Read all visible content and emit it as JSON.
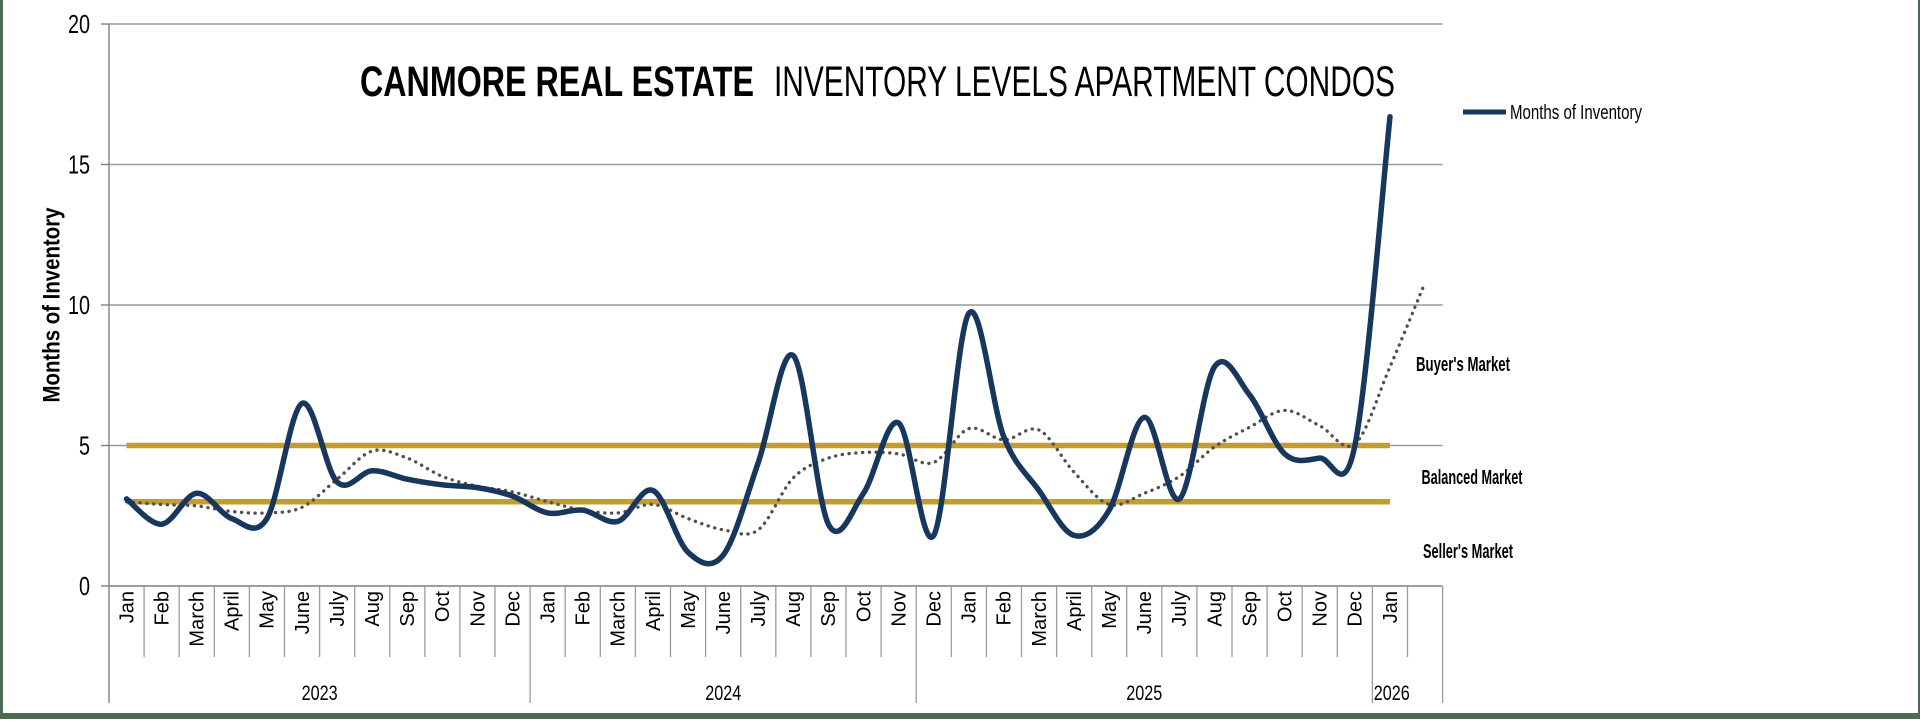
{
  "title": {
    "part1": "CANMORE REAL ESTATE",
    "part2": "INVENTORY LEVELS APARTMENT CONDOS"
  },
  "legend": {
    "label": "Months of Inventory"
  },
  "market_zones": {
    "buyers": "Buyer's Market",
    "balanced": "Balanced Market",
    "sellers": "Seller's Market"
  },
  "y_axis": {
    "title": "Months of Inventory",
    "ticks": [
      0,
      5,
      10,
      15,
      20
    ]
  },
  "colors": {
    "line": "#17375e",
    "dotted": "#4f4f4f",
    "threshold": "#c49d2f",
    "grid": "#9b9b9b",
    "axis": "#7f7f7f",
    "frame": "#4d6b50"
  },
  "chart_data": {
    "type": "line",
    "title": "CANMORE REAL ESTATE INVENTORY LEVELS APARTMENT CONDOS",
    "ylabel": "Months of Inventory",
    "ylim": [
      0,
      20
    ],
    "yticks": [
      0,
      5,
      10,
      15,
      20
    ],
    "grid": "horizontal",
    "legend_position": "right",
    "month_labels": [
      "Jan",
      "Feb",
      "March",
      "April",
      "May",
      "June",
      "July",
      "Aug",
      "Sep",
      "Oct",
      "Nov",
      "Dec",
      "Jan",
      "Feb",
      "March",
      "April",
      "May",
      "June",
      "July",
      "Aug",
      "Sep",
      "Oct",
      "Nov",
      "Dec",
      "Jan",
      "Feb",
      "March",
      "April",
      "May",
      "June",
      "July",
      "Aug",
      "Sep",
      "Oct",
      "Nov",
      "Dec",
      "Jan",
      ""
    ],
    "year_groups": [
      {
        "label": "2023",
        "start": 0,
        "count": 12,
        "center_cell": 6
      },
      {
        "label": "2024",
        "start": 12,
        "count": 11,
        "center_cell": 17.5
      },
      {
        "label": "2025",
        "start": 23,
        "count": 13,
        "center_cell": 29.5
      },
      {
        "label": "2026",
        "start": 36,
        "count": 2,
        "center_cell": 36.55
      }
    ],
    "series": [
      {
        "name": "Months of Inventory",
        "style": "solid-smooth",
        "color": "#17375e",
        "values": [
          3.1,
          2.2,
          3.3,
          2.4,
          2.4,
          6.5,
          3.7,
          4.1,
          3.8,
          3.6,
          3.5,
          3.2,
          2.6,
          2.7,
          2.3,
          3.4,
          1.2,
          1.1,
          4.4,
          8.2,
          2.2,
          3.3,
          5.8,
          1.8,
          9.7,
          5.3,
          3.4,
          1.8,
          2.7,
          6.0,
          3.1,
          7.8,
          6.8,
          4.7,
          4.55,
          5.0,
          16.7
        ]
      },
      {
        "name": "trend-dotted",
        "style": "dotted-smooth",
        "color": "#4f4f4f",
        "values": [
          3.0,
          2.9,
          2.85,
          2.65,
          2.6,
          2.8,
          3.8,
          4.8,
          4.55,
          3.9,
          3.55,
          3.35,
          3.0,
          2.7,
          2.6,
          2.9,
          2.4,
          2.0,
          2.0,
          3.85,
          4.55,
          4.75,
          4.7,
          4.4,
          5.6,
          5.2,
          5.55,
          4.05,
          2.9,
          3.3,
          3.9,
          4.95,
          5.65,
          6.25,
          5.7,
          5.05,
          7.8,
          10.8
        ]
      },
      {
        "name": "buyers-threshold",
        "style": "solid",
        "color": "#c49d2f",
        "constant_value": 5
      },
      {
        "name": "sellers-threshold",
        "style": "solid",
        "color": "#c49d2f",
        "constant_value": 3
      }
    ],
    "annotations": [
      "Buyer's Market",
      "Balanced Market",
      "Seller's Market"
    ]
  }
}
